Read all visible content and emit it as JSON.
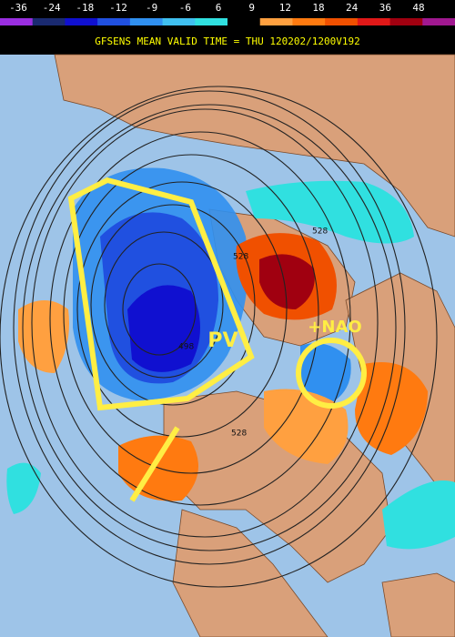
{
  "colorbar": {
    "labels": [
      -36,
      -24,
      -18,
      -12,
      -9,
      -6,
      6,
      9,
      12,
      18,
      24,
      36,
      48
    ],
    "colors": [
      "#9a2ee0",
      "#1a2a70",
      "#1010d0",
      "#2050e0",
      "#3090f0",
      "#40c0f0",
      "#30e0e0",
      "#000000",
      "#ffa040",
      "#ff7a10",
      "#f05000",
      "#e01818",
      "#a00010",
      "#a01890"
    ]
  },
  "title": "GFSENS MEAN VALID TIME = THU 120202/1200V192",
  "annotations": {
    "pv": "PV",
    "nao": "+NAO"
  },
  "contour_labels": [
    "528",
    "528",
    "528",
    "498"
  ]
}
